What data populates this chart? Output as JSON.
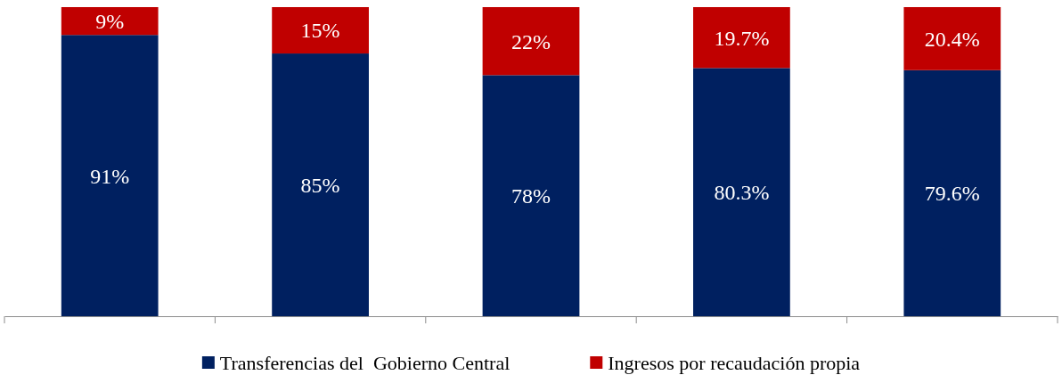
{
  "chart_data": {
    "type": "bar",
    "stacked": true,
    "categories": [
      null,
      null,
      null,
      null,
      null
    ],
    "series": [
      {
        "name": "Transferencias del  Gobierno Central",
        "color": "#002060",
        "values": [
          91,
          85,
          78,
          80.3,
          79.6
        ],
        "value_labels": [
          "91%",
          "85%",
          "78%",
          "80.3%",
          "79.6%"
        ]
      },
      {
        "name": "Ingresos por recaudación propia",
        "color": "#c00000",
        "values": [
          9,
          15,
          22,
          19.7,
          20.4
        ],
        "value_labels": [
          "9%",
          "15%",
          "22%",
          "19.7%",
          "20.4%"
        ]
      }
    ],
    "legend": "bottom"
  }
}
